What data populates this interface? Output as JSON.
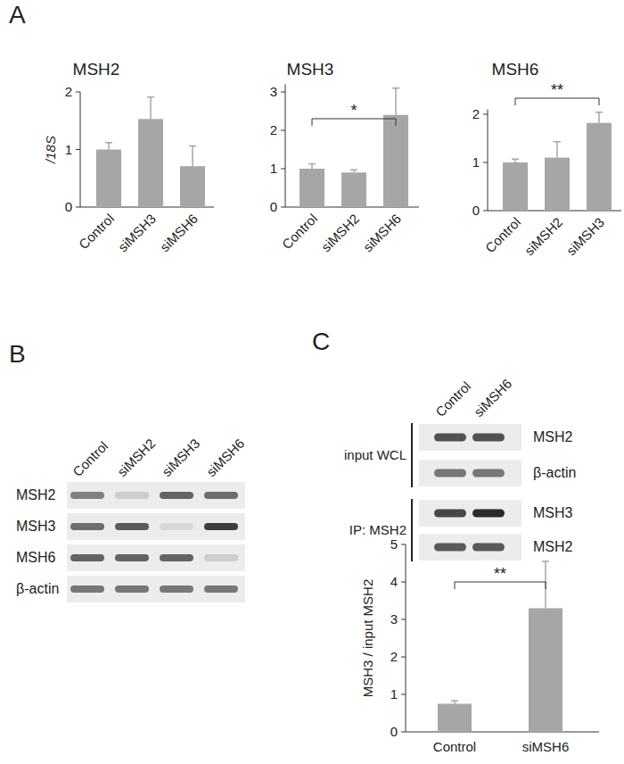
{
  "chart_data": [
    {
      "type": "bar",
      "title": "MSH2",
      "y_label": "/18S",
      "categories": [
        "Control",
        "siMSH3",
        "siMSH6"
      ],
      "values": [
        1.0,
        1.53,
        0.71
      ],
      "errors": [
        0.12,
        0.38,
        0.35
      ],
      "color": "#a6a6a6",
      "ylim": [
        0,
        2
      ],
      "yticks": [
        0,
        1,
        2
      ]
    },
    {
      "type": "bar",
      "title": "MSH3",
      "categories": [
        "Control",
        "siMSH2",
        "siMSH6"
      ],
      "values": [
        1.0,
        0.9,
        2.4
      ],
      "errors": [
        0.13,
        0.07,
        0.7
      ],
      "color": "#a6a6a6",
      "ylim": [
        0,
        3.2
      ],
      "yticks": [
        0,
        1,
        2,
        3
      ],
      "annotations": [
        {
          "text": "*",
          "between": [
            "Control",
            "siMSH6"
          ]
        }
      ]
    },
    {
      "type": "bar",
      "title": "MSH6",
      "categories": [
        "Control",
        "siMSH2",
        "siMSH3"
      ],
      "values": [
        1.0,
        1.1,
        1.82
      ],
      "errors": [
        0.07,
        0.33,
        0.22
      ],
      "color": "#a6a6a6",
      "ylim": [
        0,
        2.1
      ],
      "yticks": [
        0,
        1,
        2
      ],
      "annotations": [
        {
          "text": "**",
          "between": [
            "Control",
            "siMSH3"
          ]
        }
      ]
    },
    {
      "type": "bar",
      "y_label": "MSH3 / input MSH2",
      "categories": [
        "Control",
        "siMSH6"
      ],
      "values": [
        0.75,
        3.3
      ],
      "errors": [
        0.08,
        1.25
      ],
      "color": "#a6a6a6",
      "ylim": [
        0,
        5
      ],
      "yticks": [
        0,
        1,
        2,
        3,
        4,
        5
      ],
      "annotations": [
        {
          "text": "**",
          "between": [
            "Control",
            "siMSH6"
          ]
        }
      ]
    }
  ],
  "panel_labels": [
    "A",
    "B",
    "C"
  ],
  "blots": [
    {
      "lanes": [
        "Control",
        "siMSH2",
        "siMSH3",
        "siMSH6"
      ],
      "rows": [
        {
          "label": "MSH2",
          "intensities": [
            0.55,
            0.15,
            0.7,
            0.65
          ]
        },
        {
          "label": "MSH3",
          "intensities": [
            0.65,
            0.75,
            0.1,
            0.9
          ]
        },
        {
          "label": "MSH6",
          "intensities": [
            0.7,
            0.7,
            0.7,
            0.15
          ]
        },
        {
          "label": "β-actin",
          "intensities": [
            0.6,
            0.6,
            0.6,
            0.6
          ]
        }
      ]
    },
    {
      "lanes": [
        "Control",
        "siMSH6"
      ],
      "groups": [
        {
          "label": "input WCL",
          "rows": [
            {
              "label": "MSH2",
              "intensities": [
                0.8,
                0.8
              ]
            },
            {
              "label": "β-actin",
              "intensities": [
                0.6,
                0.6
              ]
            }
          ]
        },
        {
          "label": "IP: MSH2",
          "rows": [
            {
              "label": "MSH3",
              "intensities": [
                0.85,
                1.0
              ]
            },
            {
              "label": "MSH2",
              "intensities": [
                0.75,
                0.75
              ]
            }
          ]
        }
      ]
    }
  ]
}
